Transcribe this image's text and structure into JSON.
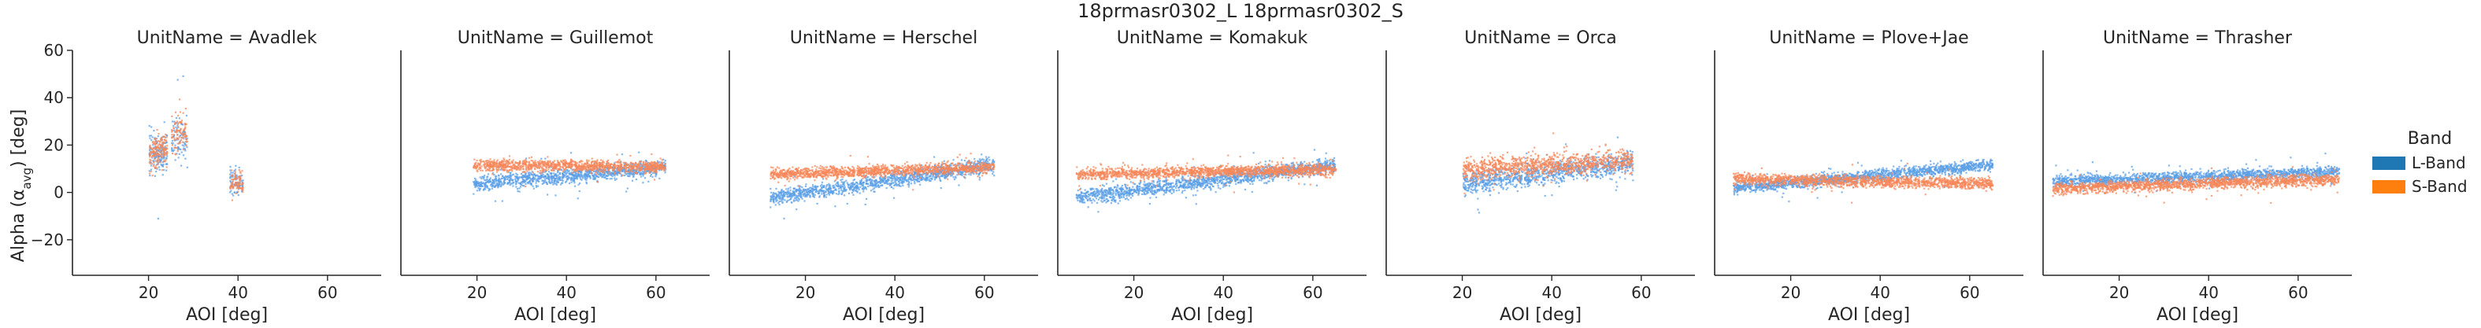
{
  "chart_data": {
    "type": "scatter",
    "suptitle": "18prmasr0302_L 18prmasr0302_S",
    "xlabel": "AOI [deg]",
    "ylabel_main": "Alpha (α",
    "ylabel_sub": "avg",
    "ylabel_end": ") [deg]",
    "xlim": [
      3,
      72
    ],
    "ylim": [
      -35,
      60
    ],
    "xticks": [
      "20",
      "40",
      "60"
    ],
    "yticks": [
      "60",
      "40",
      "20",
      "0",
      "−20"
    ],
    "legend": {
      "title": "Band",
      "placement": "right",
      "entries": [
        {
          "label": "L-Band",
          "color": "#1f77b4"
        },
        {
          "label": "S-Band",
          "color": "#ff7f0e"
        }
      ]
    },
    "point_colors": {
      "L-Band": "#5b9fe6",
      "S-Band": "#f5875a"
    },
    "panels": [
      {
        "title": "UnitName = Avadlek",
        "clusters": [
          {
            "x": [
              20,
              22
            ],
            "L": {
              "y": [
                17,
                17
              ],
              "spread": 12
            },
            "S": {
              "y": [
                17,
                17
              ],
              "spread": 9
            }
          },
          {
            "x": [
              22,
              24
            ],
            "L": {
              "y": [
                16,
                16
              ],
              "spread": 10
            },
            "S": {
              "y": [
                19,
                19
              ],
              "spread": 8
            }
          },
          {
            "x": [
              25,
              28.5
            ],
            "L": {
              "y": [
                23,
                23
              ],
              "spread": 11
            },
            "S": {
              "y": [
                25,
                25
              ],
              "spread": 10
            }
          },
          {
            "x": [
              38,
              41
            ],
            "L": {
              "y": [
                5,
                5
              ],
              "spread": 7
            },
            "S": {
              "y": [
                4,
                4
              ],
              "spread": 6
            }
          }
        ]
      },
      {
        "title": "UnitName = Guillemot",
        "clusters": [
          {
            "x": [
              19,
              62
            ],
            "L": {
              "y": [
                4,
                11
              ],
              "spread": 4
            },
            "S": {
              "y": [
                12,
                11
              ],
              "spread": 3
            }
          }
        ]
      },
      {
        "title": "UnitName = Herschel",
        "clusters": [
          {
            "x": [
              12,
              62
            ],
            "L": {
              "y": [
                -2,
                12
              ],
              "spread": 4
            },
            "S": {
              "y": [
                8,
                11
              ],
              "spread": 3
            }
          }
        ]
      },
      {
        "title": "UnitName = Komakuk",
        "clusters": [
          {
            "x": [
              7,
              65
            ],
            "L": {
              "y": [
                -2,
                12
              ],
              "spread": 4
            },
            "S": {
              "y": [
                8,
                10
              ],
              "spread": 3
            }
          }
        ]
      },
      {
        "title": "UnitName = Orca",
        "clusters": [
          {
            "x": [
              20,
              58
            ],
            "L": {
              "y": [
                4,
                13
              ],
              "spread": 6
            },
            "S": {
              "y": [
                10,
                14
              ],
              "spread": 6
            }
          }
        ]
      },
      {
        "title": "UnitName = Plove+Jae",
        "clusters": [
          {
            "x": [
              7,
              65
            ],
            "L": {
              "y": [
                2,
                12
              ],
              "spread": 3
            },
            "S": {
              "y": [
                6,
                4
              ],
              "spread": 3
            }
          }
        ]
      },
      {
        "title": "UnitName = Thrasher",
        "clusters": [
          {
            "x": [
              5,
              69
            ],
            "L": {
              "y": [
                5,
                9
              ],
              "spread": 3
            },
            "S": {
              "y": [
                2,
                6
              ],
              "spread": 3
            }
          }
        ]
      }
    ]
  }
}
